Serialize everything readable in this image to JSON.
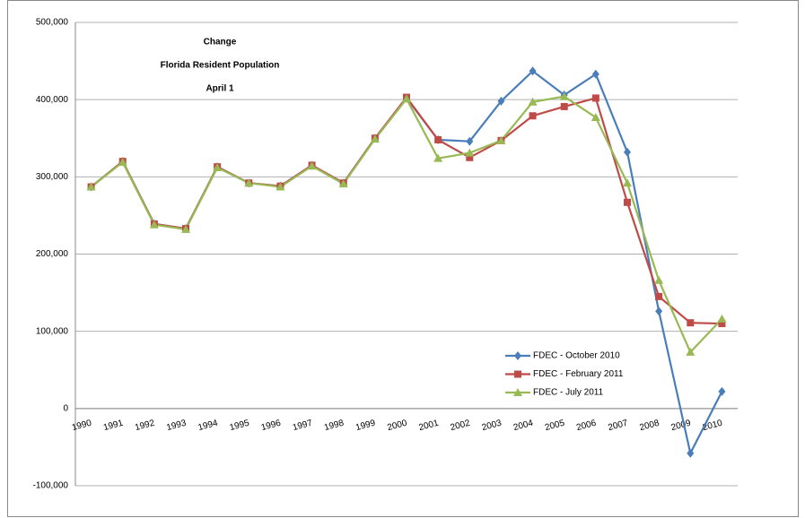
{
  "chart_data": {
    "type": "line",
    "title": [
      "Change",
      "Florida Resident Population",
      "April 1"
    ],
    "categories": [
      "1990",
      "1991",
      "1992",
      "1993",
      "1994",
      "1995",
      "1996",
      "1997",
      "1998",
      "1999",
      "2000",
      "2001",
      "2002",
      "2003",
      "2004",
      "2005",
      "2006",
      "2007",
      "2008",
      "2009",
      "2010"
    ],
    "series": [
      {
        "name": "FDEC - October 2010",
        "color": "#4a7ebb",
        "marker": "diamond",
        "values": [
          287000,
          320000,
          239000,
          233000,
          313000,
          292000,
          288000,
          315000,
          292000,
          350000,
          402000,
          348000,
          346000,
          398000,
          437000,
          406000,
          433000,
          332000,
          126000,
          -58000,
          22000
        ]
      },
      {
        "name": "FDEC - February 2011",
        "color": "#be4b48",
        "marker": "square",
        "values": [
          287000,
          320000,
          239000,
          233000,
          313000,
          292000,
          288000,
          315000,
          292000,
          350000,
          403000,
          348000,
          325000,
          347000,
          379000,
          391000,
          402000,
          267000,
          145000,
          111000,
          110000
        ]
      },
      {
        "name": "FDEC - July 2011",
        "color": "#98b954",
        "marker": "triangle",
        "values": [
          287000,
          319000,
          238000,
          232000,
          312000,
          292000,
          287000,
          314000,
          291000,
          349000,
          401000,
          324000,
          331000,
          347000,
          397000,
          404000,
          377000,
          292000,
          166000,
          73000,
          116000
        ]
      }
    ],
    "ylim": [
      -100000,
      500000
    ],
    "yticks": [
      {
        "value": -100000,
        "label": "-100,000"
      },
      0,
      {
        "value": 100000,
        "label": "100,000"
      },
      {
        "value": 200000,
        "label": "200,000"
      },
      {
        "value": 300000,
        "label": "300,000"
      },
      {
        "value": 400000,
        "label": "400,000"
      },
      {
        "value": 500000,
        "label": "500,000"
      }
    ],
    "grid": true
  }
}
